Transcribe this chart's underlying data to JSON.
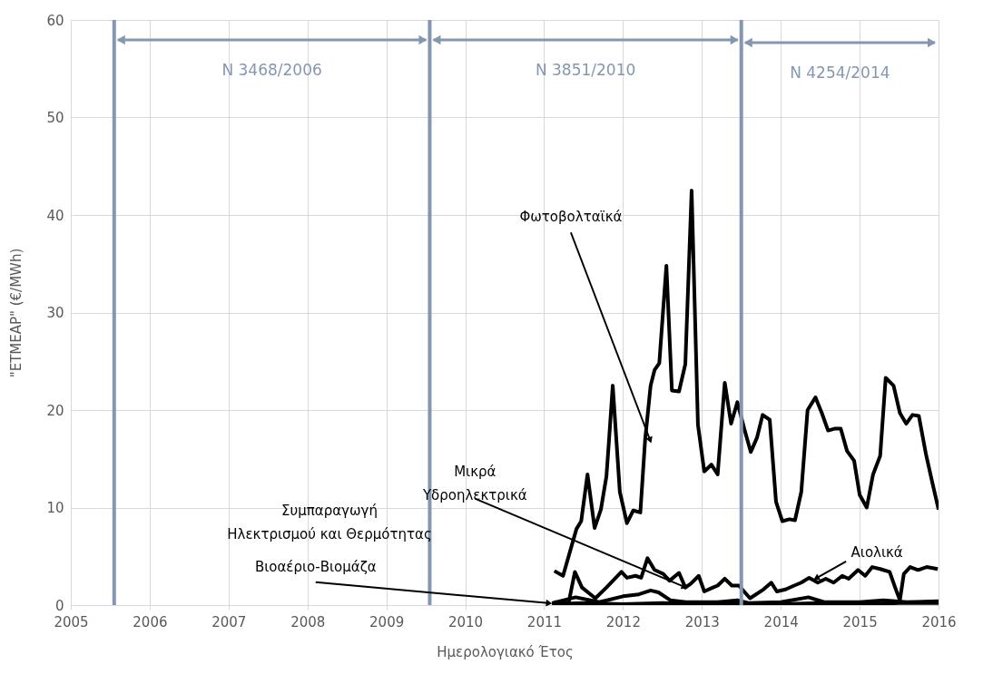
{
  "chart_data": {
    "type": "line",
    "xlabel": "Ημερολογιακό Έτος",
    "ylabel": "\"ΕΤΜΕΑΡ\" (€/MWh)",
    "xlim": [
      2005,
      2016
    ],
    "xticks": [
      2005,
      2006,
      2007,
      2008,
      2009,
      2010,
      2011,
      2012,
      2013,
      2014,
      2015,
      2016
    ],
    "ylim": [
      0,
      60
    ],
    "yticks": [
      0,
      10,
      20,
      30,
      40,
      50,
      60
    ],
    "grid": true,
    "marker": "none",
    "line_style": "solid",
    "series": [
      {
        "color": "#000000",
        "x": [
          2011.13,
          2011.24,
          2011.41,
          2011.47,
          2011.55,
          2011.64,
          2011.72,
          2011.79,
          2011.82,
          2011.87,
          2011.96,
          2012.05,
          2012.13,
          2012.22,
          2012.28,
          2012.35,
          2012.4,
          2012.46,
          2012.55,
          2012.62,
          2012.71,
          2012.79,
          2012.87,
          2012.95,
          2013.03,
          2013.12,
          2013.2,
          2013.29,
          2013.37,
          2013.45,
          2013.54,
          2013.62,
          2013.7,
          2013.77,
          2013.86,
          2013.94,
          2014.02,
          2014.11,
          2014.18,
          2014.26,
          2014.34,
          2014.44,
          2014.52,
          2014.6,
          2014.69,
          2014.76,
          2014.84,
          2014.93,
          2015.0,
          2015.09,
          2015.17,
          2015.26,
          2015.33,
          2015.43,
          2015.51,
          2015.59,
          2015.67,
          2015.75,
          2015.84,
          2015.92,
          2016.0
        ],
        "values": [
          3.5,
          3.0,
          7.8,
          8.6,
          13.4,
          7.9,
          9.8,
          13.2,
          16.6,
          22.5,
          11.6,
          8.4,
          9.7,
          9.5,
          16.9,
          22.5,
          24.1,
          24.8,
          34.8,
          22.0,
          21.9,
          24.7,
          42.5,
          18.5,
          13.7,
          14.4,
          13.4,
          22.8,
          18.6,
          20.8,
          18.0,
          15.7,
          17.2,
          19.5,
          19.0,
          10.6,
          8.6,
          8.8,
          8.7,
          11.6,
          20.0,
          21.3,
          19.7,
          17.9,
          18.1,
          18.1,
          15.8,
          14.8,
          11.3,
          10.0,
          13.4,
          15.3,
          23.3,
          22.5,
          19.7,
          18.6,
          19.5,
          19.4,
          15.5,
          12.6,
          9.8
        ]
      },
      {
        "color": "#000000",
        "x": [
          2011.13,
          2011.31,
          2011.39,
          2011.48,
          2011.65,
          2011.79,
          2011.98,
          2012.05,
          2012.16,
          2012.23,
          2012.31,
          2012.4,
          2012.51,
          2012.59,
          2012.71,
          2012.79,
          2012.86,
          2012.96,
          2013.03,
          2013.14,
          2013.2,
          2013.29,
          2013.38,
          2013.47,
          2013.61,
          2013.78,
          2013.88,
          2013.95,
          2014.06,
          2014.17,
          2014.26,
          2014.36,
          2014.47,
          2014.57,
          2014.67,
          2014.78,
          2014.86,
          2014.98,
          2015.07,
          2015.16,
          2015.26,
          2015.38,
          2015.45,
          2015.51,
          2015.56,
          2015.64,
          2015.74,
          2015.85,
          2015.99
        ],
        "values": [
          0.3,
          0.2,
          3.4,
          1.8,
          0.7,
          1.8,
          3.4,
          2.8,
          3.0,
          2.8,
          4.8,
          3.6,
          3.2,
          2.5,
          3.3,
          1.8,
          2.2,
          3.0,
          1.4,
          1.8,
          2.0,
          2.7,
          2.0,
          2.0,
          0.7,
          1.6,
          2.3,
          1.4,
          1.6,
          2.0,
          2.3,
          2.8,
          2.3,
          2.7,
          2.3,
          3.0,
          2.7,
          3.6,
          3.0,
          3.9,
          3.7,
          3.4,
          1.8,
          0.5,
          3.2,
          3.9,
          3.6,
          3.9,
          3.7
        ]
      },
      {
        "color": "#000000",
        "x": [
          2011.1,
          2011.4,
          2011.7,
          2012.0,
          2012.2,
          2012.35,
          2012.45,
          2012.6,
          2012.8,
          2013.2,
          2013.45,
          2013.6,
          2014.0,
          2014.35,
          2014.55,
          2015.0,
          2015.3,
          2015.6,
          2016.0
        ],
        "values": [
          0.2,
          0.8,
          0.3,
          0.9,
          1.1,
          1.5,
          1.3,
          0.5,
          0.3,
          0.3,
          0.5,
          0.2,
          0.3,
          0.8,
          0.3,
          0.3,
          0.5,
          0.3,
          0.4
        ]
      },
      {
        "color": "#000000",
        "x": [
          2011.1,
          2011.5,
          2012.0,
          2012.5,
          2013.0,
          2013.5,
          2014.0,
          2014.5,
          2015.0,
          2015.5,
          2016.0
        ],
        "values": [
          0.1,
          0.2,
          0.1,
          0.2,
          0.1,
          0.2,
          0.1,
          0.2,
          0.1,
          0.2,
          0.2
        ]
      }
    ],
    "ref_lines": [
      {
        "axis": "x",
        "value": 2005.55,
        "label": "N 3468/2006",
        "color": "#8497b0"
      },
      {
        "axis": "x",
        "value": 2009.55,
        "label": "N 3851/2010",
        "color": "#8497b0"
      },
      {
        "axis": "x",
        "value": 2013.5,
        "label": "N 4254/2014",
        "color": "#8497b0"
      }
    ],
    "annotations": [
      {
        "text": "Φωτοβολταϊκά",
        "x": 2012.34,
        "y": 17
      },
      {
        "text": "Μικρά Υδροηλεκτρικά",
        "x": 2012.77,
        "y": 1.9
      },
      "Συμπαραγωγή Ηλεκτρισμού και Θερμότητας",
      {
        "text": "Βιοαέριο-Βιομάζα",
        "x": 2011.05,
        "y": 0.2
      },
      {
        "text": "Αιολικά",
        "x": 2014.46,
        "y": 2.8
      }
    ]
  }
}
